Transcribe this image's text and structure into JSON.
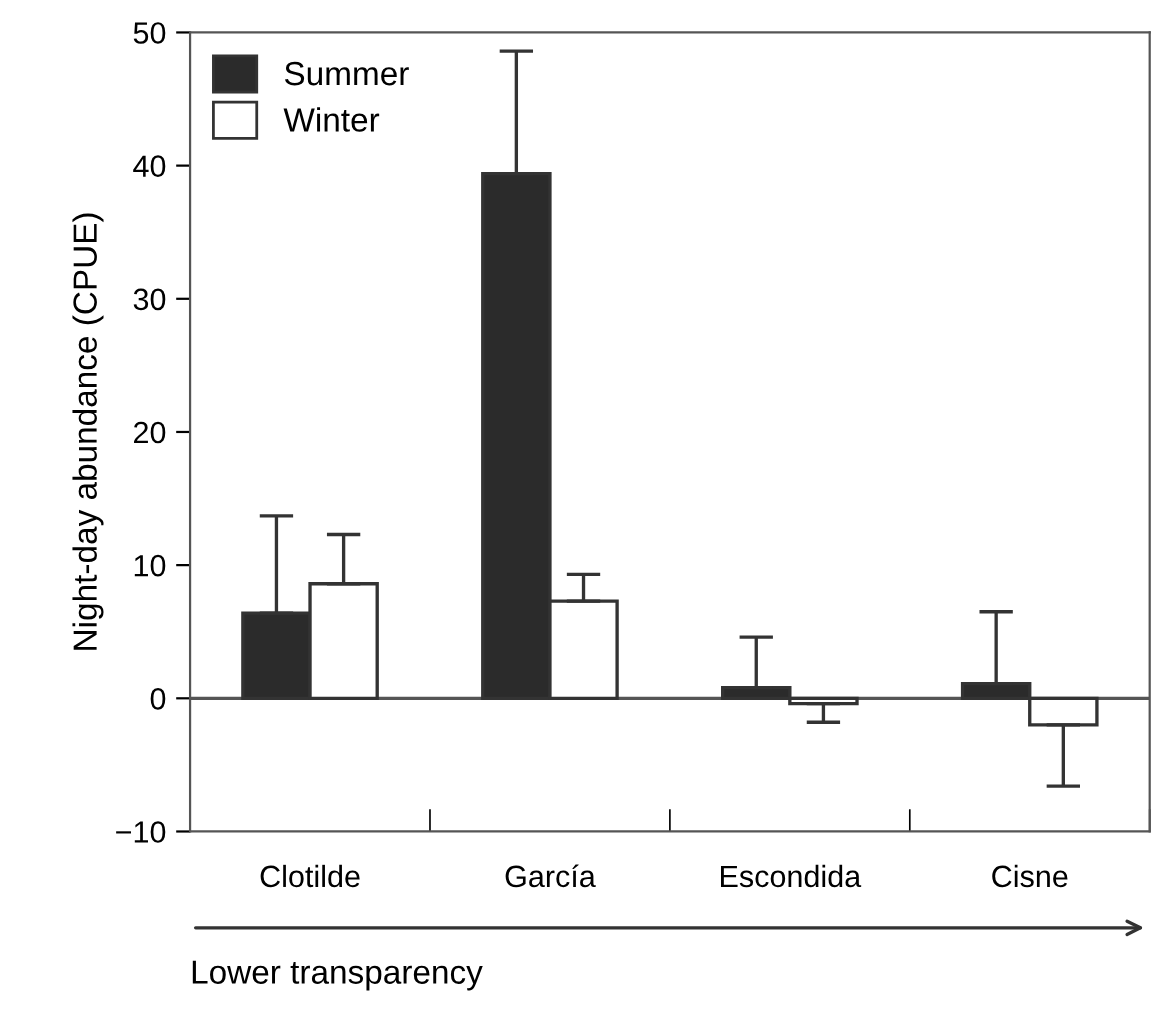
{
  "chart_data": {
    "type": "bar",
    "ylabel": "Night-day abundance (CPUE)",
    "categories": [
      "Clotilde",
      "García",
      "Escondida",
      "Cisne"
    ],
    "series": [
      {
        "name": "Summer",
        "color": "#2b2b2b",
        "values": [
          6.4,
          39.4,
          0.8,
          1.1
        ],
        "errors": [
          [
            6.4,
            13.7
          ],
          [
            39.4,
            48.6
          ],
          [
            0.8,
            4.6
          ],
          [
            1.1,
            6.5
          ]
        ]
      },
      {
        "name": "Winter",
        "color": "#ffffff",
        "values": [
          8.6,
          7.3,
          -0.4,
          -2.0
        ],
        "errors": [
          [
            8.6,
            12.3
          ],
          [
            7.3,
            9.3
          ],
          [
            -1.8,
            -0.4
          ],
          [
            -6.6,
            -2.0
          ]
        ]
      }
    ],
    "ylim": [
      -10,
      50
    ],
    "yticks": [
      {
        "value": -10,
        "label": "−10"
      },
      0,
      10,
      20,
      30,
      40,
      50
    ],
    "ref_lines": [
      {
        "axis": "y",
        "value": 0,
        "color": "#555555"
      }
    ],
    "legend": "top left",
    "grid": false,
    "annotations": [
      "Lower transparency"
    ]
  }
}
